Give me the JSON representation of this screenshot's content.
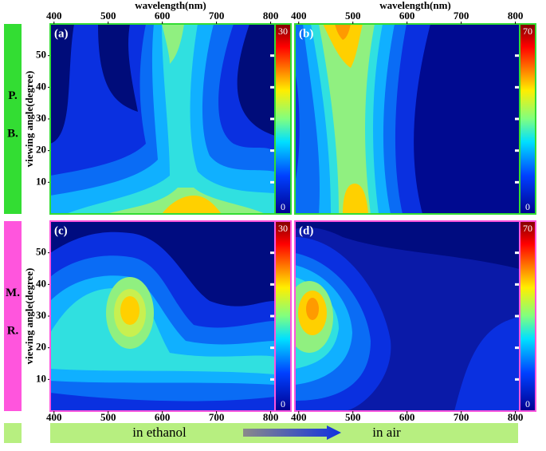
{
  "figure": {
    "x_axis_title": "wavelength(nm)",
    "y_axis_title": "viewing angle(degree)",
    "xlim": [
      393,
      808
    ],
    "xticks": [
      400,
      500,
      600,
      700,
      800
    ],
    "ylim": [
      0,
      60
    ],
    "yticks": [
      10,
      20,
      30,
      40,
      50
    ],
    "rows": [
      {
        "labels": [
          "P.",
          "B."
        ],
        "color": "#33dd33"
      },
      {
        "labels": [
          "M.",
          "R."
        ],
        "color": "#ff55dd"
      }
    ],
    "panels": [
      {
        "label": "(a)",
        "colorbar_range": [
          0,
          30
        ]
      },
      {
        "label": "(b)",
        "colorbar_range": [
          0,
          70
        ]
      },
      {
        "label": "(c)",
        "colorbar_range": [
          0,
          30
        ]
      },
      {
        "label": "(d)",
        "colorbar_range": [
          0,
          70
        ]
      }
    ],
    "conditions": [
      "in ethanol",
      "in air"
    ]
  }
}
